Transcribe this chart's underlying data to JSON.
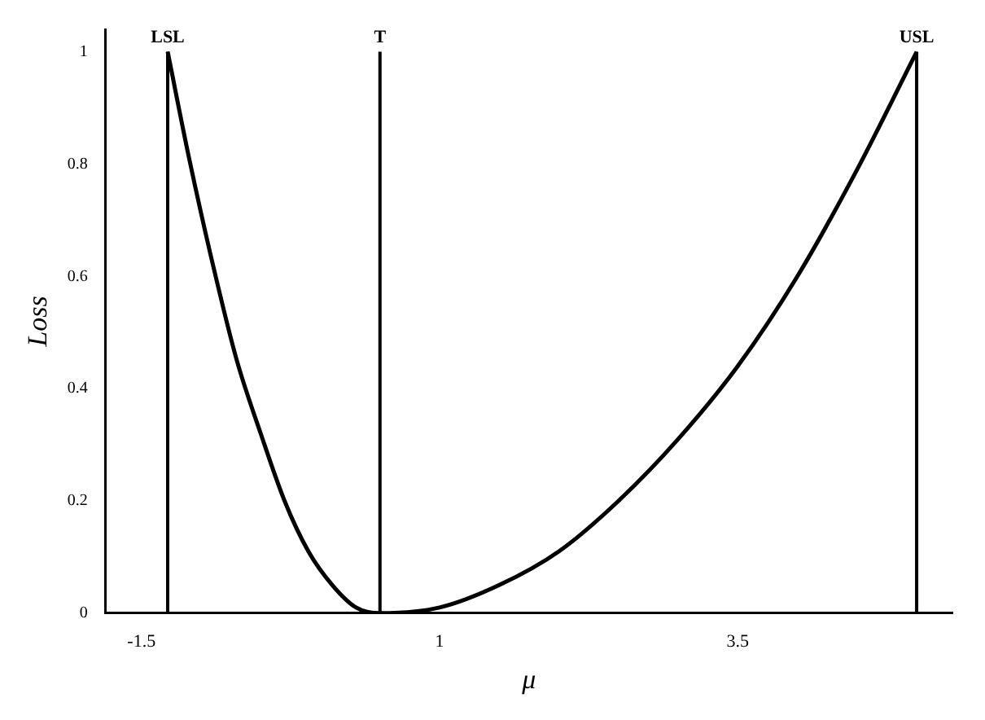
{
  "chart_data": {
    "type": "line",
    "xlabel": "μ",
    "ylabel": "Loss",
    "xlim": [
      -1.8,
      5.3
    ],
    "xticks": [
      -1.5,
      1,
      3.5
    ],
    "ylim": [
      0,
      1.04
    ],
    "yticks": [
      0,
      0.2,
      0.4,
      0.6,
      0.8,
      1
    ],
    "grid": false,
    "legend": false,
    "marker": "none",
    "line_style": "solid",
    "series": [
      {
        "color": "#000000",
        "x": [
          -1.28,
          -1.1,
          -0.9,
          -0.7,
          -0.5,
          -0.3,
          -0.1,
          0.1,
          0.3,
          0.5,
          1,
          1.5,
          2,
          2.5,
          3,
          3.5,
          4,
          4.5,
          5
        ],
        "values": [
          1,
          0.81,
          0.62,
          0.45,
          0.32,
          0.2,
          0.11,
          0.05,
          0.01,
          0,
          0.01,
          0.05,
          0.11,
          0.2,
          0.31,
          0.44,
          0.6,
          0.79,
          1
        ]
      }
    ],
    "ref_lines": [
      {
        "axis": "x",
        "value": -1.28,
        "label": "LSL"
      },
      {
        "axis": "x",
        "value": 0.5,
        "label": "T"
      },
      {
        "axis": "x",
        "value": 5,
        "label": "USL"
      }
    ]
  }
}
